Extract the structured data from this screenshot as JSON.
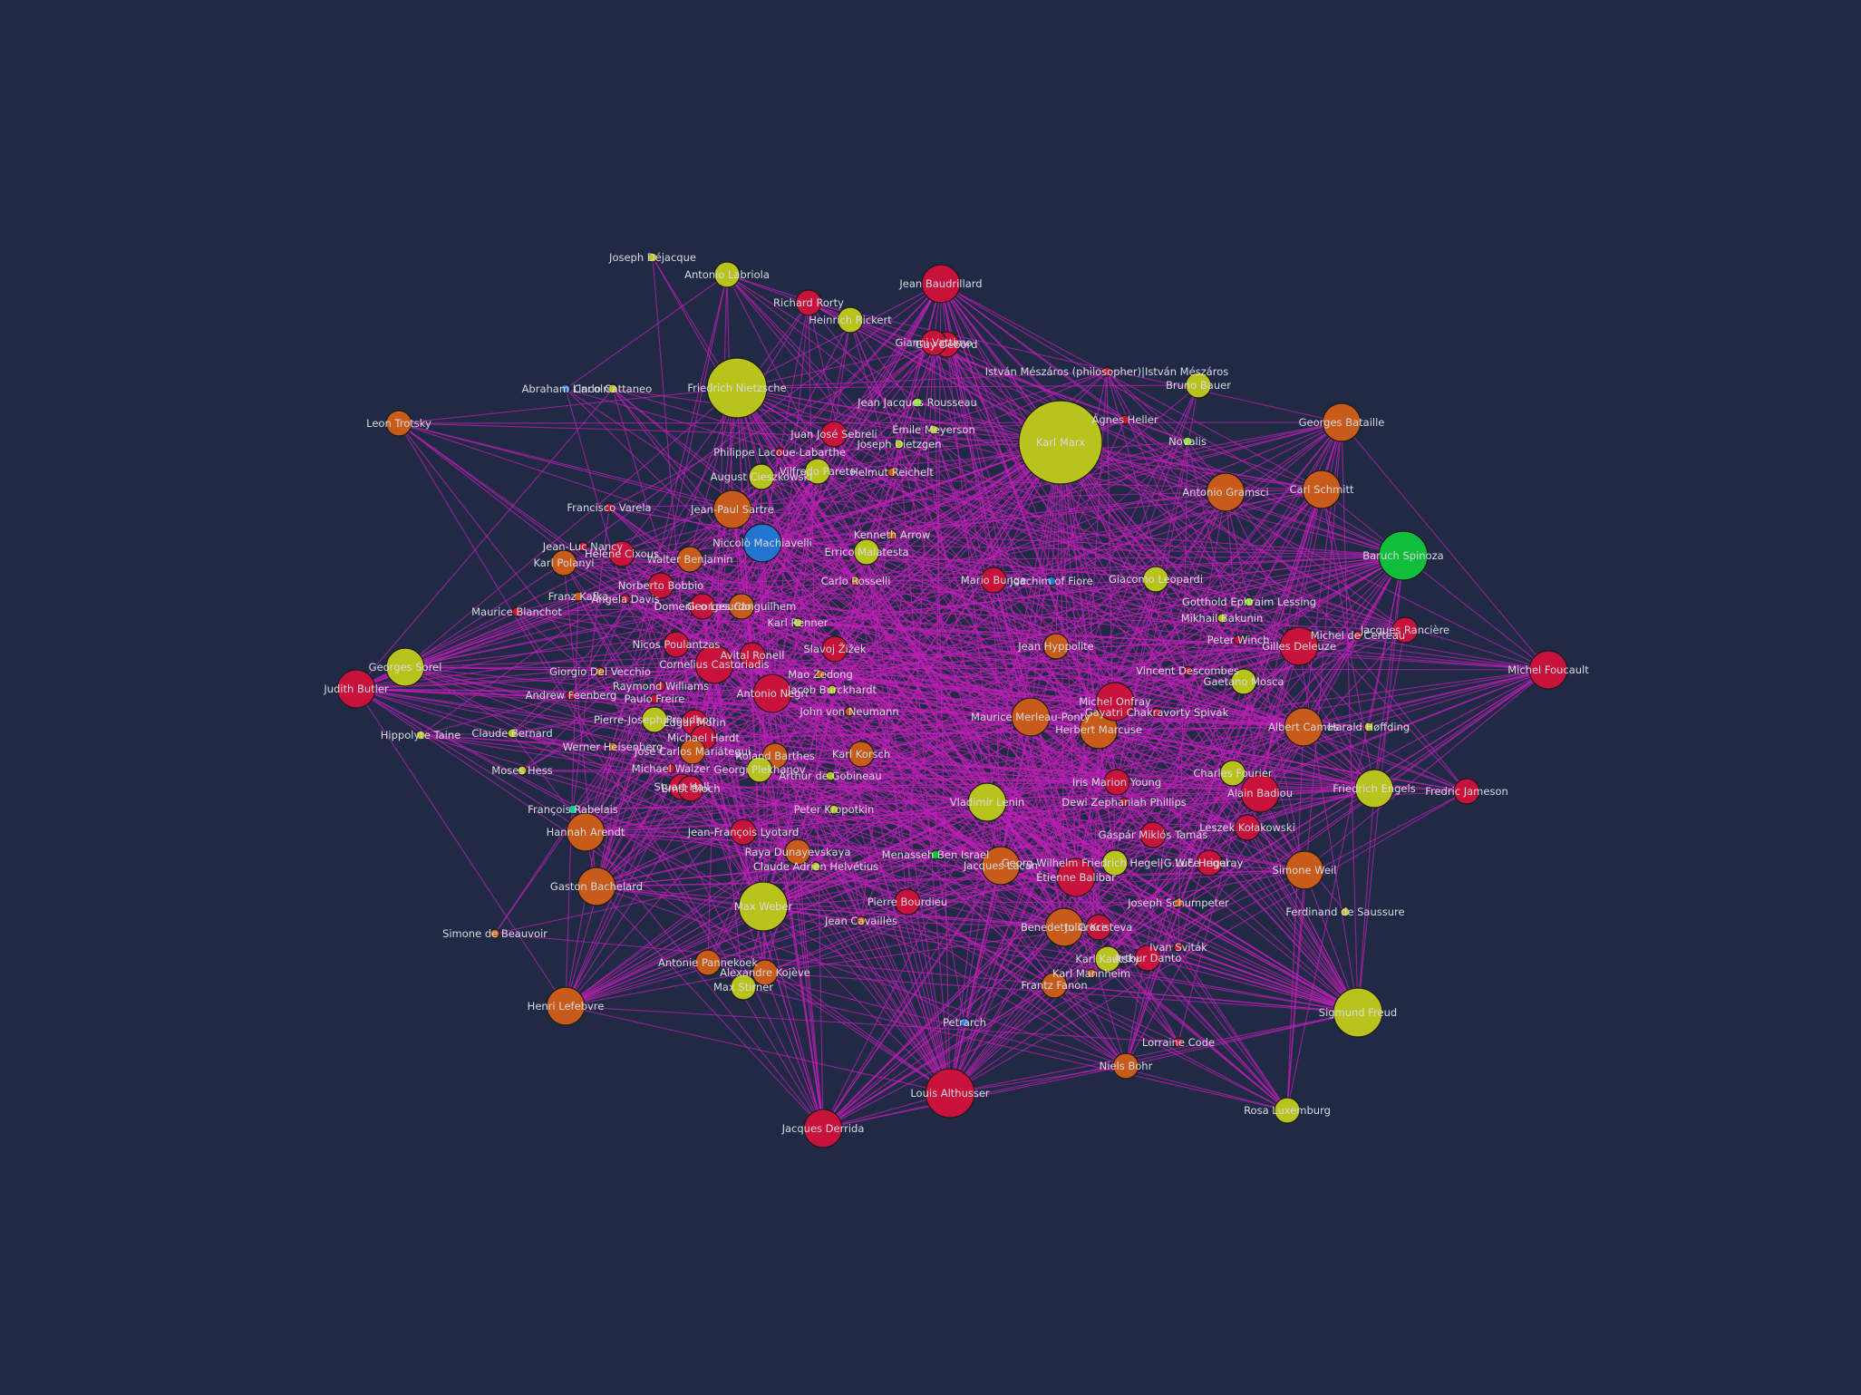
{
  "colors": {
    "background": "#212a45",
    "edge": "#c21fb8",
    "label": "#d9dbe2",
    "group": {
      "yellow": "#b8c31c",
      "orange": "#c85a1a",
      "red": "#c8123c",
      "blue": "#2474d2",
      "green": "#0fbe3a",
      "lime": "#8fe02c",
      "teal": "#16c99a"
    }
  },
  "graph": {
    "nodes": [
      {
        "id": "Karl Marx",
        "group": "yellow",
        "size": "xl"
      },
      {
        "id": "Friedrich Nietzsche",
        "group": "yellow",
        "size": "l"
      },
      {
        "id": "Max Weber",
        "group": "yellow",
        "size": "m"
      },
      {
        "id": "Sigmund Freud",
        "group": "yellow",
        "size": "m"
      },
      {
        "id": "Baruch Spinoza",
        "group": "green",
        "size": "m"
      },
      {
        "id": "Louis Althusser",
        "group": "red",
        "size": "m"
      },
      {
        "id": "Georges Sorel",
        "group": "yellow",
        "size": "s"
      },
      {
        "id": "Niccolò Machiavelli",
        "group": "blue",
        "size": "s"
      },
      {
        "id": "Jacques Derrida",
        "group": "red",
        "size": "s"
      },
      {
        "id": "Michel Foucault",
        "group": "red",
        "size": "s"
      },
      {
        "id": "Henri Lefebvre",
        "group": "orange",
        "size": "s"
      },
      {
        "id": "Carl Schmitt",
        "group": "orange",
        "size": "s"
      },
      {
        "id": "Georges Bataille",
        "group": "orange",
        "size": "s"
      },
      {
        "id": "Simone Weil",
        "group": "orange",
        "size": "s"
      },
      {
        "id": "Cornelius Castoriadis",
        "group": "red",
        "size": "s"
      },
      {
        "id": "Maurice Merleau-Ponty",
        "group": "orange",
        "size": "s"
      },
      {
        "id": "Jacques Lacan",
        "group": "orange",
        "size": "s"
      },
      {
        "id": "Vladimir Lenin",
        "group": "yellow",
        "size": "s"
      },
      {
        "id": "Friedrich Engels",
        "group": "yellow",
        "size": "s"
      },
      {
        "id": "Antonio Gramsci",
        "group": "orange",
        "size": "s"
      },
      {
        "id": "Gilles Deleuze",
        "group": "red",
        "size": "s"
      },
      {
        "id": "Alain Badiou",
        "group": "red",
        "size": "s"
      },
      {
        "id": "Albert Camus",
        "group": "orange",
        "size": "s"
      },
      {
        "id": "Herbert Marcuse",
        "group": "orange",
        "size": "s"
      },
      {
        "id": "Michel Onfray",
        "group": "red",
        "size": "s"
      },
      {
        "id": "Étienne Balibar",
        "group": "red",
        "size": "s"
      },
      {
        "id": "Judith Butler",
        "group": "red",
        "size": "s"
      },
      {
        "id": "Gaston Bachelard",
        "group": "orange",
        "size": "s"
      },
      {
        "id": "Hannah Arendt",
        "group": "orange",
        "size": "s"
      },
      {
        "id": "Jean-Paul Sartre",
        "group": "orange",
        "size": "s"
      },
      {
        "id": "Antonio Negri",
        "group": "red",
        "size": "s"
      },
      {
        "id": "Jean Baudrillard",
        "group": "red",
        "size": "s"
      },
      {
        "id": "Fredric Jameson",
        "group": "red",
        "size": "xs"
      },
      {
        "id": "Benedetto Croce",
        "group": "orange",
        "size": "s"
      },
      {
        "id": "Frantz Fanon",
        "group": "orange",
        "size": "xs"
      },
      {
        "id": "Julia Kristeva",
        "group": "red",
        "size": "xs"
      },
      {
        "id": "Guy Debord",
        "group": "red",
        "size": "xs"
      },
      {
        "id": "Gianni Vattimo",
        "group": "red",
        "size": "xs"
      },
      {
        "id": "Richard Rorty",
        "group": "red",
        "size": "xs"
      },
      {
        "id": "Heinrich Rickert",
        "group": "yellow",
        "size": "xs"
      },
      {
        "id": "Antonio Labriola",
        "group": "yellow",
        "size": "xs"
      },
      {
        "id": "Joseph Déjacque",
        "group": "yellow",
        "size": "xxs"
      },
      {
        "id": "Leon Trotsky",
        "group": "orange",
        "size": "xs"
      },
      {
        "id": "Abraham Lincoln",
        "group": "blue",
        "size": "xxs"
      },
      {
        "id": "Carlo Cattaneo",
        "group": "yellow",
        "size": "xxs"
      },
      {
        "id": "Bruno Bauer",
        "group": "yellow",
        "size": "xs"
      },
      {
        "id": "István Mészáros (philosopher)|István Mészáros",
        "group": "red",
        "size": "xxs"
      },
      {
        "id": "Ágnes Heller",
        "group": "red",
        "size": "xxs"
      },
      {
        "id": "Novalis",
        "group": "lime",
        "size": "xxs"
      },
      {
        "id": "Jean Jacques Rousseau",
        "group": "lime",
        "size": "xxs"
      },
      {
        "id": "Juan José Sebreli",
        "group": "red",
        "size": "xs"
      },
      {
        "id": "Émile Meyerson",
        "group": "yellow",
        "size": "xxs"
      },
      {
        "id": "Joseph Dietzgen",
        "group": "yellow",
        "size": "xxs"
      },
      {
        "id": "Philippe Lacoue-Labarthe",
        "group": "red",
        "size": "xxs"
      },
      {
        "id": "Vilfredo Pareto",
        "group": "yellow",
        "size": "xs"
      },
      {
        "id": "Helmut Reichelt",
        "group": "orange",
        "size": "xxs"
      },
      {
        "id": "August Cieszkowski",
        "group": "yellow",
        "size": "xs"
      },
      {
        "id": "Francisco Varela",
        "group": "red",
        "size": "xxs"
      },
      {
        "id": "Kenneth Arrow",
        "group": "orange",
        "size": "xxs"
      },
      {
        "id": "Errico Malatesta",
        "group": "yellow",
        "size": "xs"
      },
      {
        "id": "Jean-Luc Nancy",
        "group": "red",
        "size": "xxs"
      },
      {
        "id": "Hélène Cixous",
        "group": "red",
        "size": "xs"
      },
      {
        "id": "Karl Polanyi",
        "group": "orange",
        "size": "xs"
      },
      {
        "id": "Walter Benjamin",
        "group": "orange",
        "size": "xs"
      },
      {
        "id": "Carlo Rosselli",
        "group": "orange",
        "size": "xxs"
      },
      {
        "id": "Mario Bunge",
        "group": "red",
        "size": "xs"
      },
      {
        "id": "Joachim of Fiore",
        "group": "blue",
        "size": "xxs"
      },
      {
        "id": "Giacomo Leopardi",
        "group": "yellow",
        "size": "xs"
      },
      {
        "id": "Gotthold Ephraim Lessing",
        "group": "lime",
        "size": "xxs"
      },
      {
        "id": "Mikhail Bakunin",
        "group": "yellow",
        "size": "xxs"
      },
      {
        "id": "Jacques Rancière",
        "group": "red",
        "size": "xs"
      },
      {
        "id": "Michel de Certeau",
        "group": "red",
        "size": "xxs"
      },
      {
        "id": "Peter Winch",
        "group": "red",
        "size": "xxs"
      },
      {
        "id": "Norberto Bobbio",
        "group": "red",
        "size": "xs"
      },
      {
        "id": "Franz Kafka",
        "group": "orange",
        "size": "xxs"
      },
      {
        "id": "Angela Davis",
        "group": "red",
        "size": "xxs"
      },
      {
        "id": "Maurice Blanchot",
        "group": "red",
        "size": "xxs"
      },
      {
        "id": "Domenico Losurdo",
        "group": "red",
        "size": "xs"
      },
      {
        "id": "Georges Canguilhem",
        "group": "orange",
        "size": "xs"
      },
      {
        "id": "Karl Renner",
        "group": "yellow",
        "size": "xxs"
      },
      {
        "id": "Jean Hyppolite",
        "group": "orange",
        "size": "xs"
      },
      {
        "id": "Nicos Poulantzas",
        "group": "red",
        "size": "xs"
      },
      {
        "id": "Avital Ronell",
        "group": "red",
        "size": "xs"
      },
      {
        "id": "Slavoj Žižek",
        "group": "red",
        "size": "xs"
      },
      {
        "id": "Vincent Descombes",
        "group": "red",
        "size": "xxs"
      },
      {
        "id": "Gaetano Mosca",
        "group": "yellow",
        "size": "xs"
      },
      {
        "id": "Giorgio Del Vecchio",
        "group": "orange",
        "size": "xxs"
      },
      {
        "id": "Mao Zedong",
        "group": "orange",
        "size": "xxs"
      },
      {
        "id": "Raymond Williams",
        "group": "red",
        "size": "xxs"
      },
      {
        "id": "Jacob Burckhardt",
        "group": "yellow",
        "size": "xxs"
      },
      {
        "id": "Andrew Feenberg",
        "group": "red",
        "size": "xxs"
      },
      {
        "id": "Paulo Freire",
        "group": "red",
        "size": "xxs"
      },
      {
        "id": "Gayatri Chakravorty Spivak",
        "group": "red",
        "size": "xxs"
      },
      {
        "id": "Harald Høffding",
        "group": "yellow",
        "size": "xxs"
      },
      {
        "id": "John von Neumann",
        "group": "orange",
        "size": "xxs"
      },
      {
        "id": "Pierre-Joseph Proudhon",
        "group": "yellow",
        "size": "xs"
      },
      {
        "id": "Edgar Morin",
        "group": "red",
        "size": "xs"
      },
      {
        "id": "Hippolyte Taine",
        "group": "yellow",
        "size": "xxs"
      },
      {
        "id": "Claude Bernard",
        "group": "yellow",
        "size": "xxs"
      },
      {
        "id": "Michael Hardt",
        "group": "red",
        "size": "xs"
      },
      {
        "id": "Werner Heisenberg",
        "group": "orange",
        "size": "xxs"
      },
      {
        "id": "José Carlos Mariátegui",
        "group": "orange",
        "size": "xs"
      },
      {
        "id": "Roland Barthes",
        "group": "orange",
        "size": "xs"
      },
      {
        "id": "Karl Korsch",
        "group": "orange",
        "size": "xs"
      },
      {
        "id": "Moses Hess",
        "group": "yellow",
        "size": "xxs"
      },
      {
        "id": "Michael Walzer",
        "group": "red",
        "size": "xxs"
      },
      {
        "id": "Georgi Plekhanov",
        "group": "yellow",
        "size": "xs"
      },
      {
        "id": "Arthur de Gobineau",
        "group": "yellow",
        "size": "xxs"
      },
      {
        "id": "Iris Marion Young",
        "group": "red",
        "size": "xs"
      },
      {
        "id": "Stuart Hall",
        "group": "red",
        "size": "xs"
      },
      {
        "id": "Ernst Bloch",
        "group": "red",
        "size": "xs"
      },
      {
        "id": "Charles Fourier",
        "group": "yellow",
        "size": "xs"
      },
      {
        "id": "François Rabelais",
        "group": "teal",
        "size": "xxs"
      },
      {
        "id": "Peter Kropotkin",
        "group": "yellow",
        "size": "xxs"
      },
      {
        "id": "Dewi Zephaniah Phillips",
        "group": "red",
        "size": "xxs"
      },
      {
        "id": "Leszek Kołakowski",
        "group": "red",
        "size": "xs"
      },
      {
        "id": "Jean-François Lyotard",
        "group": "red",
        "size": "xs"
      },
      {
        "id": "Gáspár Miklós Tamás",
        "group": "red",
        "size": "xs"
      },
      {
        "id": "Raya Dunayevskaya",
        "group": "orange",
        "size": "xs"
      },
      {
        "id": "Menasseh Ben Israel",
        "group": "green",
        "size": "xxs"
      },
      {
        "id": "Georg Wilhelm Friedrich Hegel|G.W.F. Hegel",
        "group": "yellow",
        "size": "xs"
      },
      {
        "id": "Luce Irigaray",
        "group": "red",
        "size": "xs"
      },
      {
        "id": "Claude Adrien Helvétius",
        "group": "yellow",
        "size": "xxs"
      },
      {
        "id": "Pierre Bourdieu",
        "group": "red",
        "size": "xs"
      },
      {
        "id": "Joseph Schumpeter",
        "group": "orange",
        "size": "xxs"
      },
      {
        "id": "Ferdinand de Saussure",
        "group": "yellow",
        "size": "xxs"
      },
      {
        "id": "Simone de Beauvoir",
        "group": "orange",
        "size": "xxs"
      },
      {
        "id": "Jean Cavaillès",
        "group": "orange",
        "size": "xxs"
      },
      {
        "id": "Ivan Sviták",
        "group": "red",
        "size": "xxs"
      },
      {
        "id": "Antonie Pannekoek",
        "group": "orange",
        "size": "xs"
      },
      {
        "id": "Alexandre Kojève",
        "group": "orange",
        "size": "xs"
      },
      {
        "id": "Karl Kautsky",
        "group": "yellow",
        "size": "xs"
      },
      {
        "id": "Arthur Danto",
        "group": "red",
        "size": "xs"
      },
      {
        "id": "Max Stirner",
        "group": "yellow",
        "size": "xs"
      },
      {
        "id": "Karl Mannheim",
        "group": "orange",
        "size": "xxs"
      },
      {
        "id": "Petrarch",
        "group": "blue",
        "size": "xxs"
      },
      {
        "id": "Lorraine Code",
        "group": "red",
        "size": "xxs"
      },
      {
        "id": "Niels Bohr",
        "group": "orange",
        "size": "xs"
      },
      {
        "id": "Rosa Luxemburg",
        "group": "yellow",
        "size": "xs"
      }
    ],
    "edge_count": 1000
  }
}
